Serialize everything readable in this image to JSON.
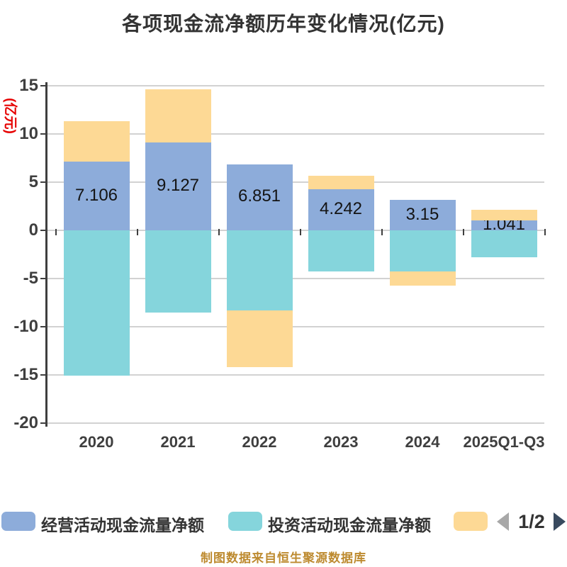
{
  "title": {
    "text": "各项现金流净额历年变化情况(亿元)"
  },
  "y_axis": {
    "unit_label": "(亿元)",
    "ticks": [
      15,
      10,
      5,
      0,
      -5,
      -10,
      -15,
      -20
    ]
  },
  "chart_data": {
    "type": "bar",
    "stacked": true,
    "title": "各项现金流净额历年变化情况(亿元)",
    "ylabel": "(亿元)",
    "ylim": [
      -20,
      15
    ],
    "grid": true,
    "legend_position": "bottom",
    "categories": [
      "2020",
      "2021",
      "2022",
      "2023",
      "2024",
      "2025Q1-Q3"
    ],
    "series": [
      {
        "name": "经营活动现金流量净额",
        "color": "#8dacda",
        "values": [
          7.106,
          9.127,
          6.851,
          4.242,
          3.15,
          1.041
        ]
      },
      {
        "name": "投资活动现金流量净额",
        "color": "#85d5dc",
        "values": [
          -15.1,
          -8.5,
          -8.3,
          -4.3,
          -4.3,
          -2.8
        ]
      },
      {
        "name": "",
        "color": "#fdd995",
        "values": [
          4.2,
          5.5,
          -5.9,
          1.4,
          -1.4,
          1.1
        ]
      }
    ],
    "bar_labels": [
      "7.106",
      "9.127",
      "6.851",
      "4.242",
      "3.15",
      "1.041"
    ]
  },
  "legend": {
    "items": [
      {
        "label": "经营活动现金流量净额",
        "color": "#8dacda"
      },
      {
        "label": "投资活动现金流量净额",
        "color": "#85d5dc"
      },
      {
        "label": "",
        "color": "#fdd995"
      }
    ]
  },
  "pager": {
    "page_label": "1/2"
  },
  "caption": {
    "text": "制图数据来自恒生聚源数据库"
  },
  "colors": {
    "axis": "#3f3f3f",
    "grid": "#d2d2d2",
    "title": "#333333",
    "ylabel_red": "#e60000",
    "caption": "#bd8a2f",
    "pager_prev": "#a8a8a8",
    "pager_next": "#394a5f",
    "bar_label": "#141414"
  }
}
